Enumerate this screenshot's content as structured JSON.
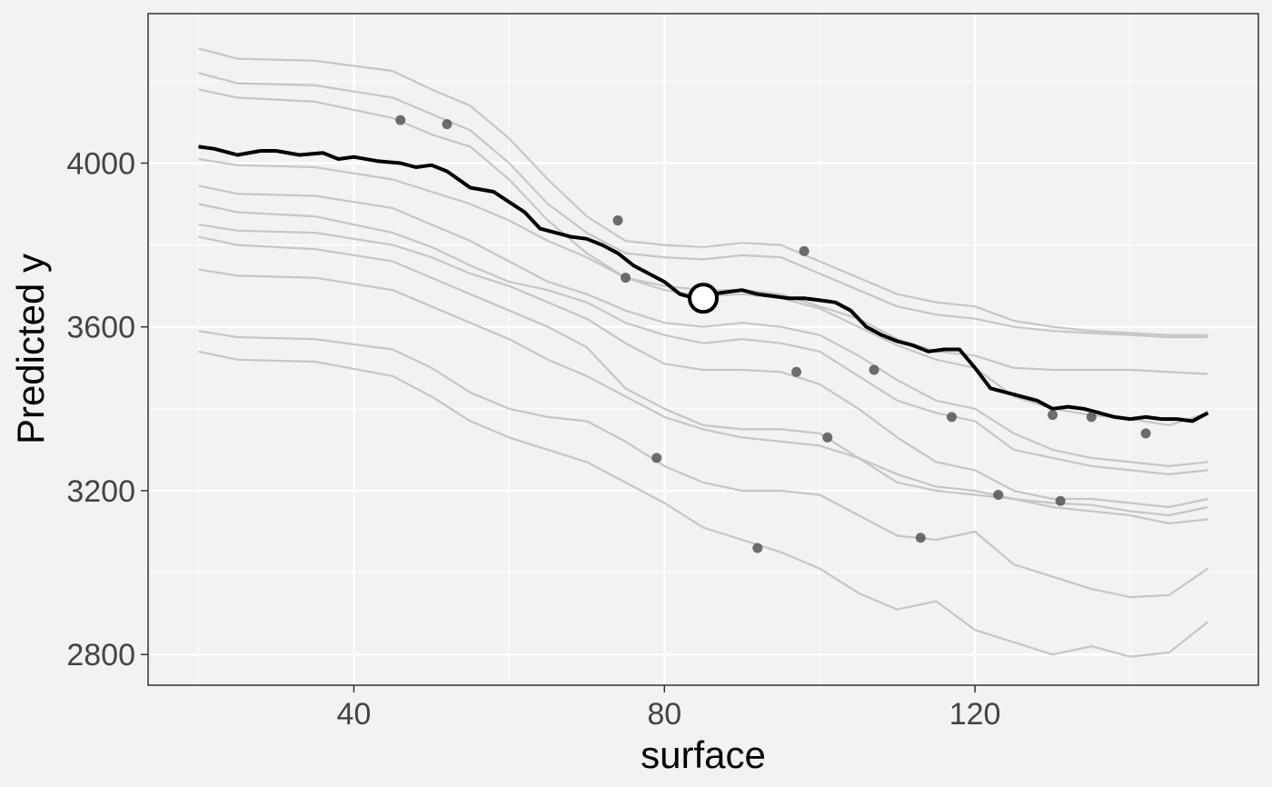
{
  "chart_data": {
    "type": "line",
    "xlabel": "surface",
    "ylabel": "Predicted y",
    "xlim": [
      13.5,
      156.5
    ],
    "ylim": [
      2725,
      4365
    ],
    "xticks": [
      40,
      80,
      120
    ],
    "yticks": [
      2800,
      3200,
      3600,
      4000
    ],
    "xminor": [
      20,
      60,
      100,
      140
    ],
    "yminor": [
      3000,
      3400,
      3800,
      4200
    ],
    "grid": true,
    "colors": {
      "background": "#f2f2f2",
      "grid": "#ffffff",
      "ice": "#c6c6c6",
      "pdp": "#000000",
      "points": "#555555"
    },
    "ice_curves": [
      {
        "x": [
          20,
          25,
          35,
          45,
          50,
          55,
          60,
          65,
          70,
          75,
          80,
          85,
          90,
          95,
          100,
          105,
          110,
          115,
          120,
          125,
          130,
          135,
          140,
          145,
          150
        ],
        "y": [
          4280,
          4255,
          4250,
          4225,
          4180,
          4140,
          4060,
          3960,
          3870,
          3810,
          3800,
          3795,
          3805,
          3800,
          3760,
          3720,
          3680,
          3660,
          3650,
          3615,
          3600,
          3590,
          3585,
          3580,
          3580
        ]
      },
      {
        "x": [
          20,
          25,
          35,
          45,
          50,
          55,
          60,
          65,
          70,
          75,
          80,
          85,
          90,
          95,
          100,
          105,
          110,
          115,
          120,
          125,
          130,
          135,
          140,
          145,
          150
        ],
        "y": [
          4220,
          4195,
          4190,
          4160,
          4120,
          4080,
          4000,
          3900,
          3830,
          3780,
          3770,
          3765,
          3775,
          3770,
          3730,
          3690,
          3650,
          3630,
          3620,
          3600,
          3590,
          3585,
          3580,
          3575,
          3575
        ]
      },
      {
        "x": [
          20,
          25,
          35,
          45,
          50,
          55,
          60,
          65,
          70,
          75,
          80,
          85,
          90,
          95,
          100,
          105,
          110,
          115,
          120,
          125,
          130,
          135,
          140,
          145,
          150
        ],
        "y": [
          4180,
          4160,
          4150,
          4110,
          4070,
          4040,
          3960,
          3860,
          3780,
          3720,
          3700,
          3690,
          3690,
          3680,
          3650,
          3620,
          3570,
          3540,
          3530,
          3500,
          3495,
          3495,
          3495,
          3490,
          3485
        ]
      },
      {
        "x": [
          20,
          25,
          35,
          45,
          50,
          55,
          60,
          65,
          70,
          75,
          80,
          85,
          90,
          95,
          100,
          105,
          110,
          115,
          120,
          125,
          130,
          135,
          140,
          145,
          150
        ],
        "y": [
          4010,
          3995,
          3990,
          3960,
          3930,
          3900,
          3860,
          3810,
          3770,
          3720,
          3690,
          3675,
          3680,
          3670,
          3645,
          3600,
          3555,
          3520,
          3500,
          3430,
          3400,
          3385,
          3375,
          3360,
          3390
        ]
      },
      {
        "x": [
          20,
          25,
          35,
          45,
          50,
          55,
          60,
          65,
          70,
          75,
          80,
          85,
          90,
          95,
          100,
          105,
          110,
          115,
          120,
          125,
          130,
          135,
          140,
          145,
          150
        ],
        "y": [
          3945,
          3925,
          3920,
          3890,
          3850,
          3810,
          3760,
          3710,
          3680,
          3640,
          3610,
          3600,
          3610,
          3600,
          3580,
          3530,
          3470,
          3420,
          3400,
          3340,
          3300,
          3280,
          3270,
          3260,
          3270
        ]
      },
      {
        "x": [
          20,
          25,
          35,
          45,
          50,
          55,
          60,
          65,
          70,
          75,
          80,
          85,
          90,
          95,
          100,
          105,
          110,
          115,
          120,
          125,
          130,
          135,
          140,
          145,
          150
        ],
        "y": [
          3900,
          3880,
          3870,
          3830,
          3795,
          3750,
          3710,
          3690,
          3660,
          3610,
          3580,
          3560,
          3570,
          3560,
          3540,
          3480,
          3420,
          3390,
          3370,
          3300,
          3280,
          3260,
          3250,
          3240,
          3250
        ]
      },
      {
        "x": [
          20,
          25,
          35,
          45,
          50,
          55,
          60,
          65,
          70,
          75,
          80,
          85,
          90,
          95,
          100,
          105,
          110,
          115,
          120,
          125,
          130,
          135,
          140,
          145,
          150
        ],
        "y": [
          3850,
          3835,
          3830,
          3800,
          3770,
          3730,
          3700,
          3660,
          3620,
          3560,
          3510,
          3495,
          3495,
          3490,
          3460,
          3400,
          3330,
          3270,
          3250,
          3200,
          3180,
          3180,
          3170,
          3160,
          3180
        ]
      },
      {
        "x": [
          20,
          25,
          35,
          45,
          50,
          55,
          60,
          65,
          70,
          75,
          80,
          85,
          90,
          95,
          100,
          105,
          110,
          115,
          120,
          125,
          130,
          135,
          140,
          145,
          150
        ],
        "y": [
          3820,
          3800,
          3790,
          3760,
          3720,
          3680,
          3640,
          3600,
          3550,
          3450,
          3400,
          3360,
          3350,
          3350,
          3340,
          3280,
          3220,
          3200,
          3190,
          3180,
          3170,
          3165,
          3150,
          3140,
          3160
        ]
      },
      {
        "x": [
          20,
          25,
          35,
          45,
          50,
          55,
          60,
          65,
          70,
          75,
          80,
          85,
          90,
          95,
          100,
          105,
          110,
          115,
          120,
          125,
          130,
          135,
          140,
          145,
          150
        ],
        "y": [
          3740,
          3725,
          3720,
          3690,
          3650,
          3610,
          3570,
          3520,
          3480,
          3430,
          3380,
          3350,
          3330,
          3320,
          3310,
          3280,
          3240,
          3210,
          3200,
          3180,
          3160,
          3150,
          3140,
          3120,
          3130
        ]
      },
      {
        "x": [
          20,
          25,
          35,
          45,
          50,
          55,
          60,
          65,
          70,
          75,
          80,
          85,
          90,
          95,
          100,
          105,
          110,
          115,
          120,
          125,
          130,
          135,
          140,
          145,
          150
        ],
        "y": [
          3590,
          3575,
          3570,
          3545,
          3500,
          3440,
          3400,
          3380,
          3370,
          3320,
          3260,
          3220,
          3200,
          3200,
          3190,
          3140,
          3090,
          3080,
          3100,
          3020,
          2990,
          2960,
          2940,
          2945,
          3010
        ]
      },
      {
        "x": [
          20,
          25,
          35,
          45,
          50,
          55,
          60,
          65,
          70,
          75,
          80,
          85,
          90,
          95,
          100,
          105,
          110,
          115,
          120,
          125,
          130,
          135,
          140,
          145,
          150
        ],
        "y": [
          3540,
          3520,
          3515,
          3480,
          3430,
          3370,
          3330,
          3300,
          3270,
          3220,
          3170,
          3110,
          3080,
          3050,
          3010,
          2950,
          2910,
          2930,
          2860,
          2830,
          2800,
          2820,
          2795,
          2805,
          2880
        ]
      }
    ],
    "pdp": {
      "x": [
        20,
        22,
        25,
        28,
        30,
        33,
        36,
        38,
        40,
        43,
        46,
        48,
        50,
        52,
        55,
        58,
        60,
        62,
        64,
        66,
        68,
        70,
        72,
        74,
        76,
        78,
        80,
        82,
        84,
        86,
        88,
        90,
        92,
        94,
        96,
        98,
        100,
        102,
        104,
        106,
        108,
        110,
        112,
        114,
        116,
        118,
        120,
        122,
        124,
        126,
        128,
        130,
        132,
        134,
        136,
        138,
        140,
        142,
        144,
        146,
        148,
        150
      ],
      "y": [
        4040,
        4035,
        4020,
        4030,
        4030,
        4020,
        4025,
        4010,
        4015,
        4005,
        4000,
        3990,
        3995,
        3980,
        3940,
        3930,
        3905,
        3880,
        3840,
        3830,
        3820,
        3815,
        3800,
        3780,
        3750,
        3730,
        3710,
        3680,
        3670,
        3680,
        3685,
        3690,
        3680,
        3675,
        3670,
        3670,
        3665,
        3660,
        3640,
        3600,
        3580,
        3565,
        3555,
        3540,
        3545,
        3545,
        3500,
        3450,
        3440,
        3430,
        3420,
        3400,
        3405,
        3400,
        3390,
        3380,
        3375,
        3380,
        3375,
        3375,
        3370,
        3390
      ]
    },
    "observations": {
      "x": [
        46,
        52,
        74,
        75,
        79,
        92,
        97,
        98,
        101,
        107,
        113,
        117,
        123,
        130,
        131,
        135,
        142
      ],
      "y": [
        4105,
        4095,
        3860,
        3720,
        3280,
        3060,
        3490,
        3785,
        3330,
        3495,
        3085,
        3380,
        3190,
        3385,
        3175,
        3380,
        3340
      ]
    },
    "highlight": {
      "x": 85,
      "y": 3670
    }
  }
}
